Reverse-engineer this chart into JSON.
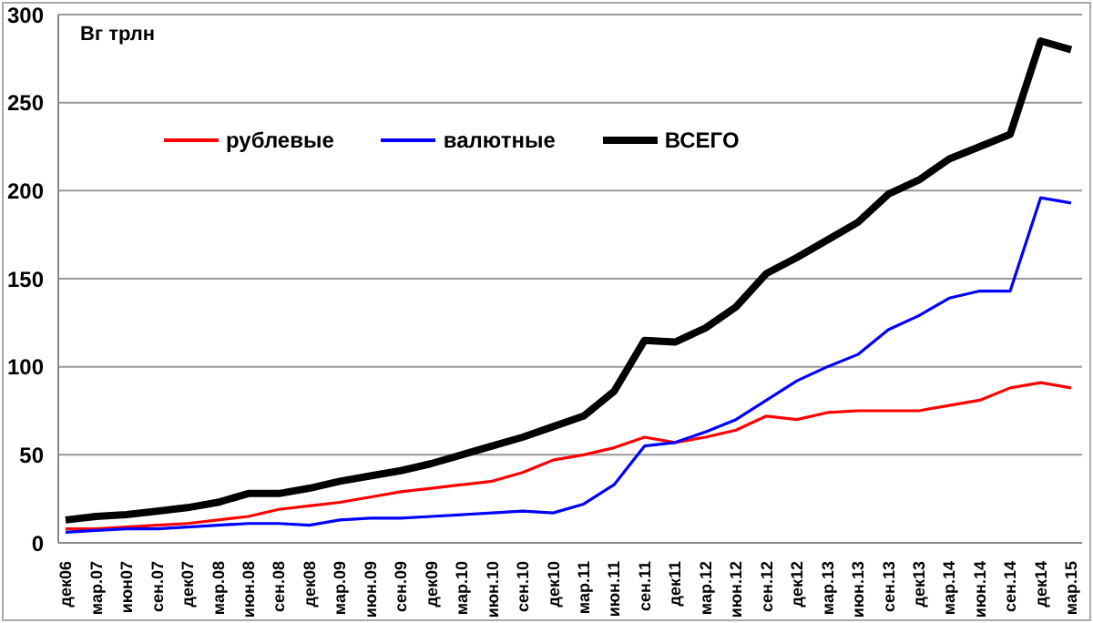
{
  "chart_data": {
    "type": "line",
    "ylabel": "Вг трлн",
    "categories": [
      "дек06",
      "мар.07",
      "июн07",
      "сен.07",
      "дек07",
      "мар.08",
      "июн.08",
      "сен.08",
      "дек08",
      "мар.09",
      "июн.09",
      "сен.09",
      "дек09",
      "мар.10",
      "июн.10",
      "сен.10",
      "дек10",
      "мар.11",
      "июн.11",
      "сен.11",
      "дек11",
      "мар.12",
      "июн.12",
      "сен.12",
      "дек12",
      "мар.13",
      "июн.13",
      "сен.13",
      "дек13",
      "мар.14",
      "июн.14",
      "сен.14",
      "дек14",
      "мар.15"
    ],
    "series": [
      {
        "name": "рублевые",
        "color": "#ff0000",
        "values": [
          8,
          8,
          9,
          10,
          11,
          13,
          15,
          19,
          21,
          23,
          26,
          29,
          31,
          33,
          35,
          40,
          47,
          50,
          54,
          60,
          57,
          60,
          64,
          72,
          70,
          74,
          75,
          75,
          75,
          78,
          81,
          88,
          91,
          88
        ]
      },
      {
        "name": "валютные",
        "color": "#0000ff",
        "values": [
          6,
          7,
          8,
          8,
          9,
          10,
          11,
          11,
          10,
          13,
          14,
          14,
          15,
          16,
          17,
          18,
          17,
          22,
          33,
          55,
          57,
          63,
          70,
          81,
          92,
          100,
          107,
          121,
          129,
          139,
          143,
          143,
          196,
          193
        ]
      },
      {
        "name": "ВСЕГО",
        "color": "#000000",
        "values": [
          13,
          15,
          16,
          18,
          20,
          23,
          28,
          28,
          31,
          35,
          38,
          41,
          45,
          50,
          55,
          60,
          66,
          72,
          86,
          115,
          114,
          122,
          134,
          153,
          162,
          172,
          182,
          198,
          206,
          218,
          225,
          232,
          285,
          280
        ]
      }
    ],
    "ylim": [
      0,
      300
    ],
    "yticks": [
      0,
      50,
      100,
      150,
      200,
      250,
      300
    ],
    "grid": "y",
    "legend": "top",
    "marker": "none",
    "line_style": "solid"
  }
}
